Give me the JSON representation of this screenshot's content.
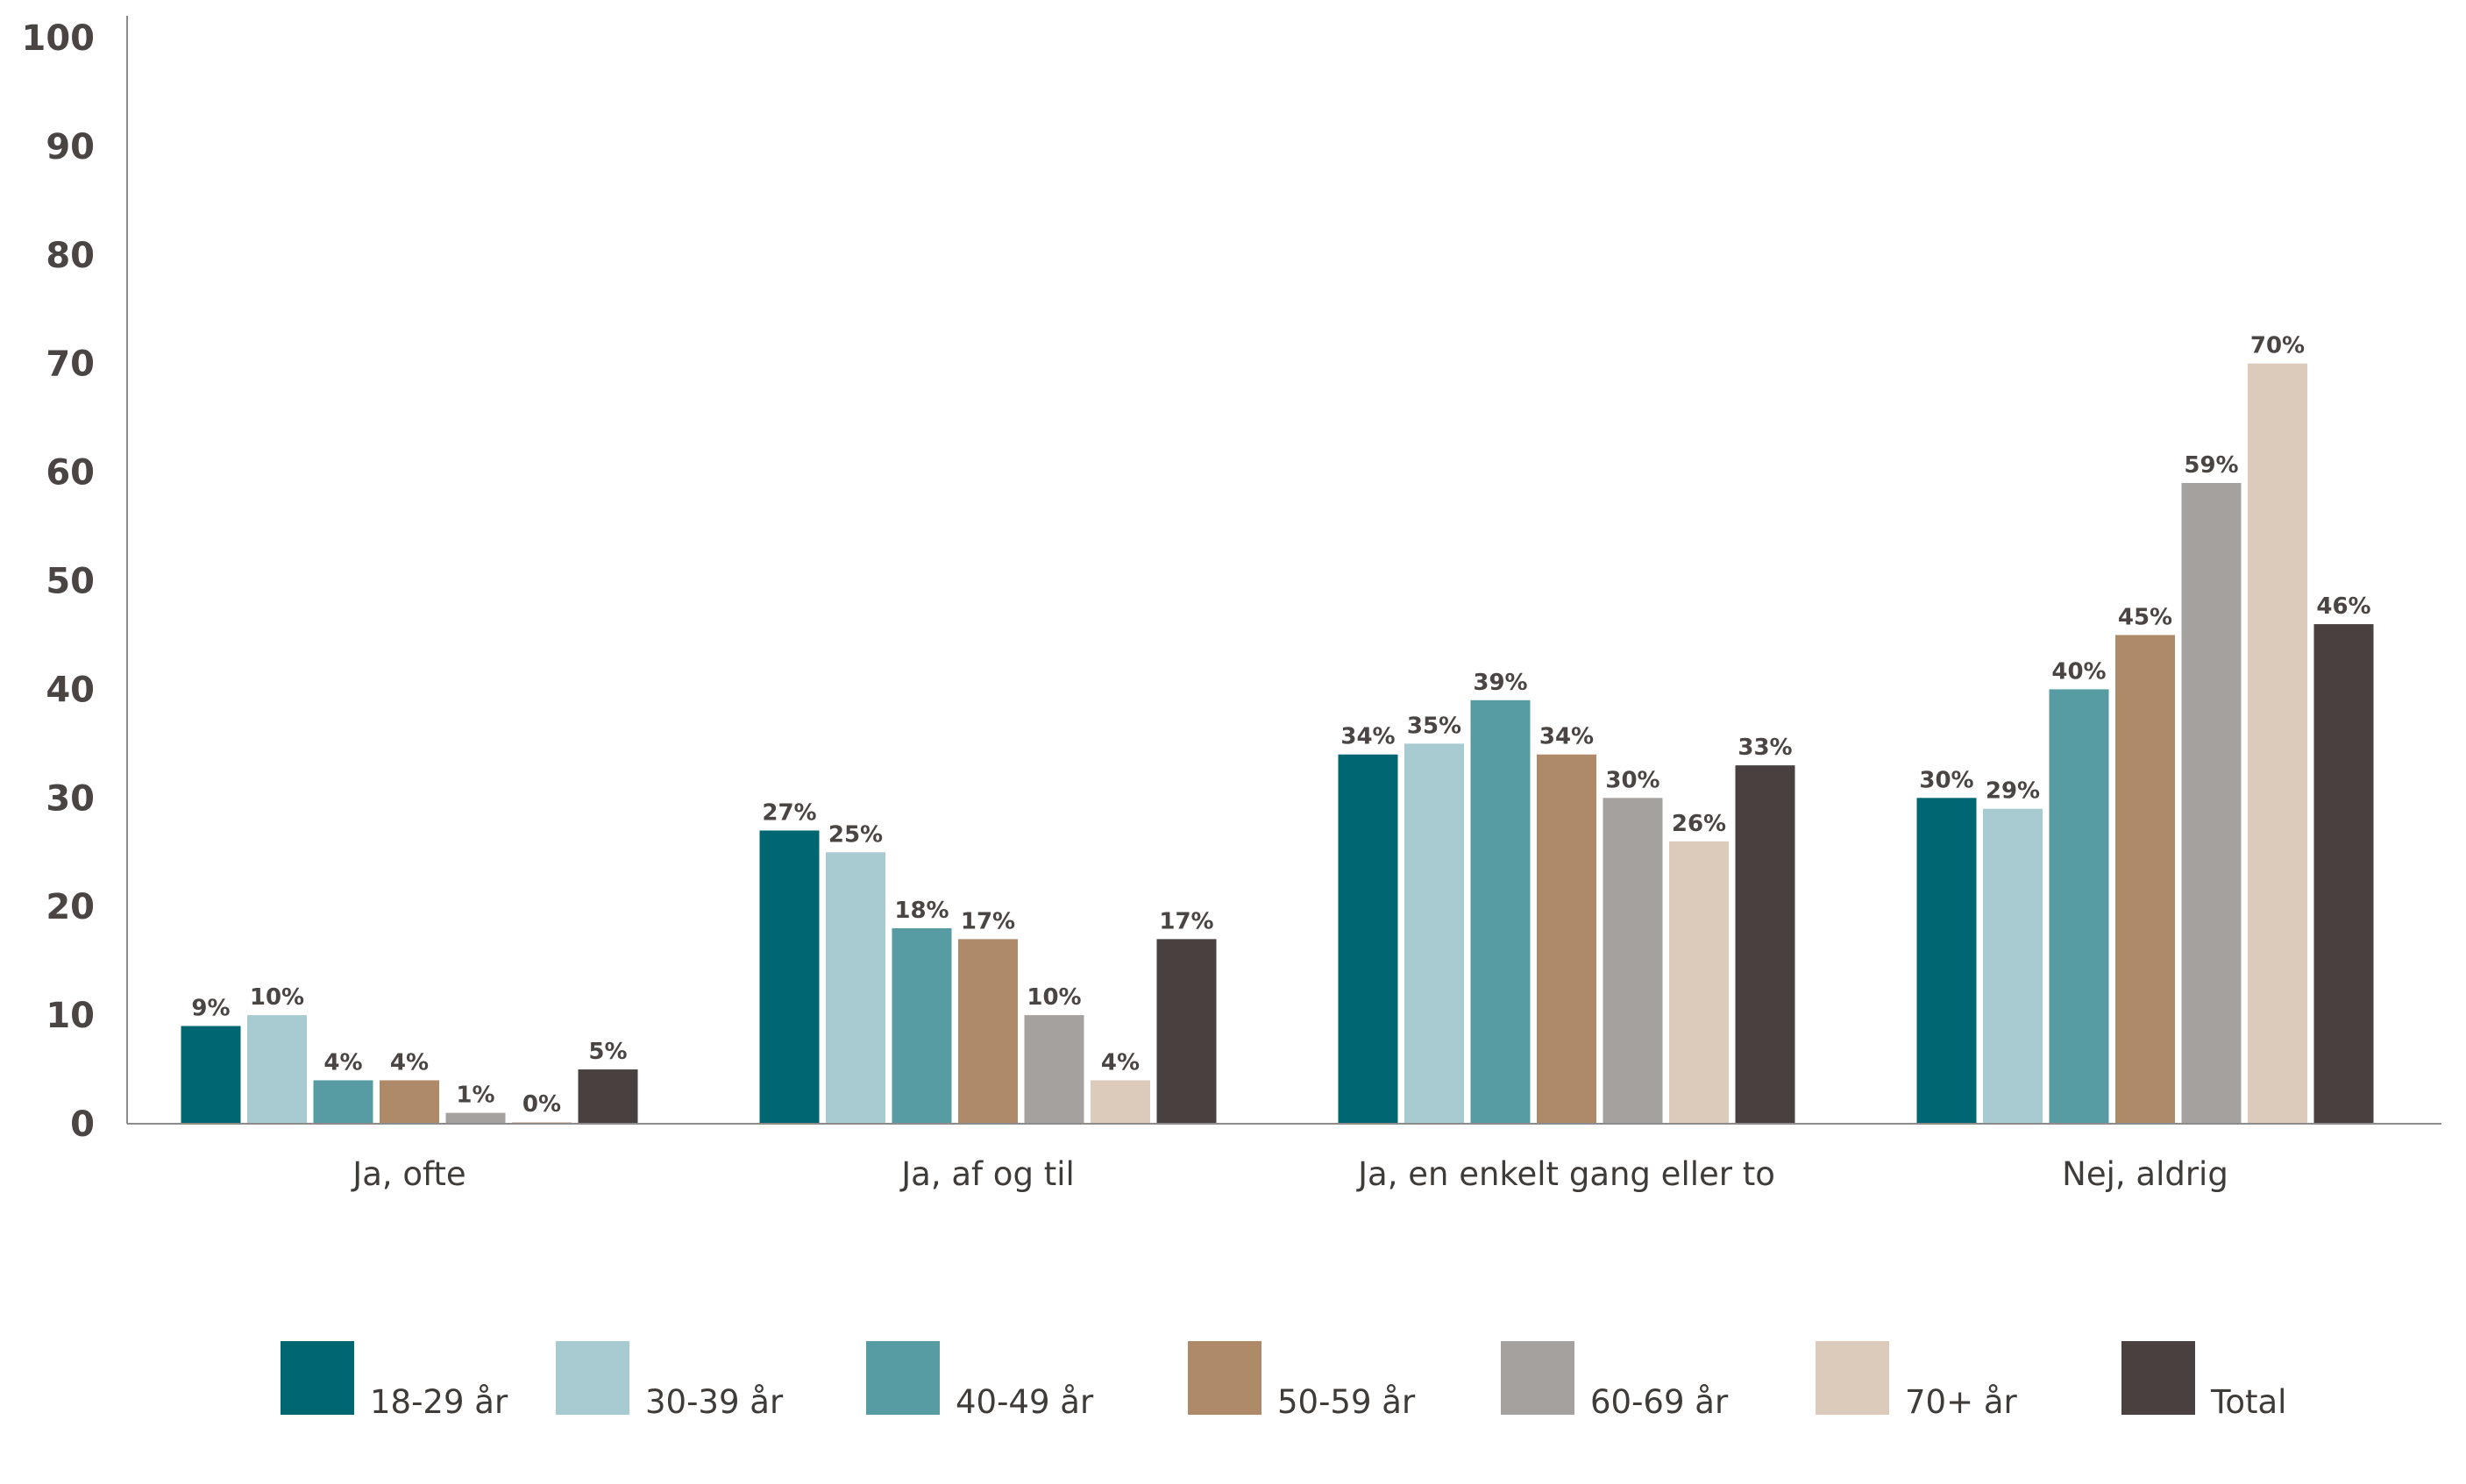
{
  "chart_data": {
    "type": "bar",
    "title": "",
    "xlabel": "",
    "ylabel": "",
    "ylim": [
      0,
      100
    ],
    "yticks": [
      0,
      10,
      20,
      30,
      40,
      50,
      60,
      70,
      80,
      90,
      100
    ],
    "grid": false,
    "legend_position": "bottom",
    "categories": [
      "Ja, ofte",
      "Ja, af og til",
      "Ja, en enkelt gang eller to",
      "Nej, aldrig"
    ],
    "series": [
      {
        "name": "18-29 år",
        "color": "#006672",
        "values": [
          9,
          27,
          34,
          30
        ],
        "labels": [
          "9%",
          "27%",
          "34%",
          "30%"
        ]
      },
      {
        "name": "30-39 år",
        "color": "#a8cbd1",
        "values": [
          10,
          25,
          35,
          29
        ],
        "labels": [
          "10%",
          "25%",
          "35%",
          "29%"
        ]
      },
      {
        "name": "40-49 år",
        "color": "#579ba3",
        "values": [
          4,
          18,
          39,
          40
        ],
        "labels": [
          "4%",
          "18%",
          "39%",
          "40%"
        ]
      },
      {
        "name": "50-59 år",
        "color": "#ae8a69",
        "values": [
          4,
          17,
          34,
          45
        ],
        "labels": [
          "4%",
          "17%",
          "34%",
          "45%"
        ]
      },
      {
        "name": "60-69 år",
        "color": "#a5a19f",
        "values": [
          1,
          10,
          30,
          59
        ],
        "labels": [
          "1%",
          "10%",
          "30%",
          "59%"
        ]
      },
      {
        "name": "70+ år",
        "color": "#dccbbb",
        "values": [
          0,
          4,
          26,
          70
        ],
        "labels": [
          "0%",
          "4%",
          "26%",
          "70%"
        ]
      },
      {
        "name": "Total",
        "color": "#48413f",
        "values": [
          5,
          17,
          33,
          46
        ],
        "labels": [
          "5%",
          "17%",
          "33%",
          "46%"
        ]
      }
    ]
  }
}
